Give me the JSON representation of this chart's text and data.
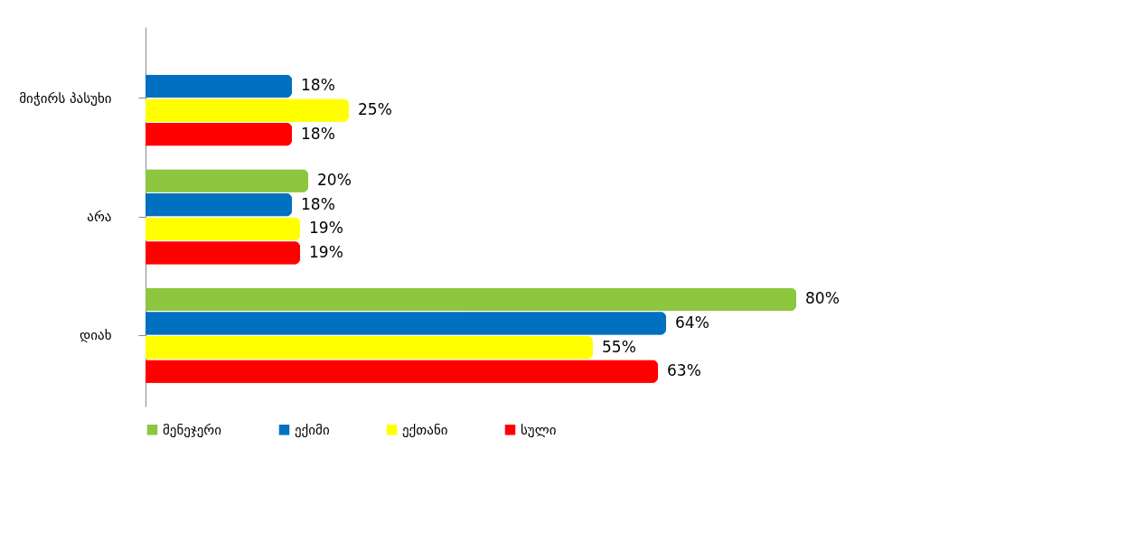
{
  "chart_data": {
    "type": "bar",
    "orientation": "horizontal",
    "categories": [
      "მიჭირს პასუხი",
      "არა",
      "დიახ"
    ],
    "series": [
      {
        "name": "მენეჯერი",
        "color": "#8dc63f",
        "values": [
          0,
          20,
          80
        ],
        "value_labels": [
          null,
          "20%",
          "80%"
        ]
      },
      {
        "name": "ექიმი",
        "color": "#0070c0",
        "values": [
          18,
          18,
          64
        ],
        "value_labels": [
          "18%",
          "18%",
          "64%"
        ]
      },
      {
        "name": "ექთანი",
        "color": "#ffff00",
        "values": [
          25,
          19,
          55
        ],
        "value_labels": [
          "25%",
          "19%",
          "55%"
        ]
      },
      {
        "name": "სული",
        "color": "#ff0000",
        "values": [
          18,
          19,
          63
        ],
        "value_labels": [
          "18%",
          "19%",
          "63%"
        ]
      }
    ],
    "legend": "bottom",
    "grid": false,
    "tick_labels": "y"
  }
}
